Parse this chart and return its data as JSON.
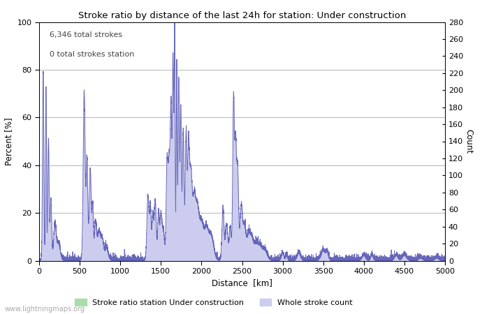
{
  "title": "Stroke ratio by distance of the last 24h for station: Under construction",
  "xlabel": "Distance  [km]",
  "ylabel_left": "Percent [%]",
  "ylabel_right": "Count",
  "annotation_line1": "6,346 total strokes",
  "annotation_line2": "0 total strokes station",
  "watermark": "www.lightningmaps.org",
  "xlim": [
    0,
    5000
  ],
  "ylim_left": [
    0,
    100
  ],
  "ylim_right": [
    0,
    280
  ],
  "xticks": [
    0,
    500,
    1000,
    1500,
    2000,
    2500,
    3000,
    3500,
    4000,
    4500,
    5000
  ],
  "yticks_left": [
    0,
    20,
    40,
    60,
    80,
    100
  ],
  "yticks_right": [
    0,
    20,
    40,
    60,
    80,
    100,
    120,
    140,
    160,
    180,
    200,
    220,
    240,
    260,
    280
  ],
  "legend_label_green": "Stroke ratio station Under construction",
  "legend_label_blue": "Whole stroke count",
  "line_color": "#6666bb",
  "fill_color_blue": "#ccccee",
  "fill_color_green": "#aaddaa",
  "background_color": "#ffffff",
  "grid_color": "#aaaaaa"
}
